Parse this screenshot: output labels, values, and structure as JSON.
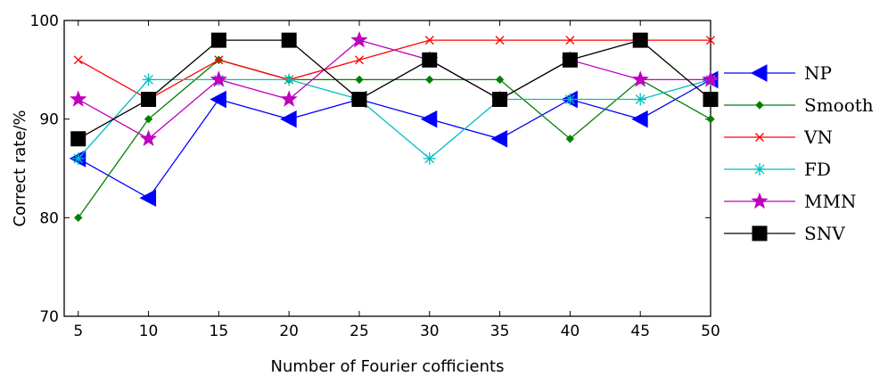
{
  "chart_data": {
    "type": "line",
    "xlabel": "Number of Fourier cofficients",
    "ylabel": "Correct rate/%",
    "xlim": [
      4,
      50
    ],
    "ylim": [
      70,
      100
    ],
    "x": [
      5,
      10,
      15,
      20,
      25,
      30,
      35,
      40,
      45,
      50
    ],
    "x_ticks": [
      5,
      10,
      15,
      20,
      25,
      30,
      35,
      40,
      45,
      50
    ],
    "y_ticks": [
      70,
      80,
      90,
      100
    ],
    "grid": false,
    "legend_position": "right",
    "series": [
      {
        "name": "NP",
        "color": "#0000ff",
        "marker": "triangle-left",
        "values": [
          86,
          82,
          92,
          90,
          92,
          90,
          88,
          92,
          90,
          94
        ]
      },
      {
        "name": "Smooth",
        "color": "#008000",
        "marker": "diamond",
        "values": [
          80,
          90,
          96,
          94,
          94,
          94,
          94,
          88,
          94,
          90
        ]
      },
      {
        "name": "VN",
        "color": "#ff0000",
        "marker": "x",
        "values": [
          96,
          92,
          96,
          94,
          96,
          98,
          98,
          98,
          98,
          98
        ]
      },
      {
        "name": "FD",
        "color": "#00bfbf",
        "marker": "asterisk",
        "values": [
          86,
          94,
          94,
          94,
          92,
          86,
          92,
          92,
          92,
          94
        ]
      },
      {
        "name": "MMN",
        "color": "#bf00bf",
        "marker": "star",
        "values": [
          92,
          88,
          94,
          92,
          98,
          96,
          92,
          96,
          94,
          94
        ]
      },
      {
        "name": "SNV",
        "color": "#000000",
        "marker": "square",
        "values": [
          88,
          92,
          98,
          98,
          92,
          96,
          92,
          96,
          98,
          92
        ]
      }
    ]
  }
}
